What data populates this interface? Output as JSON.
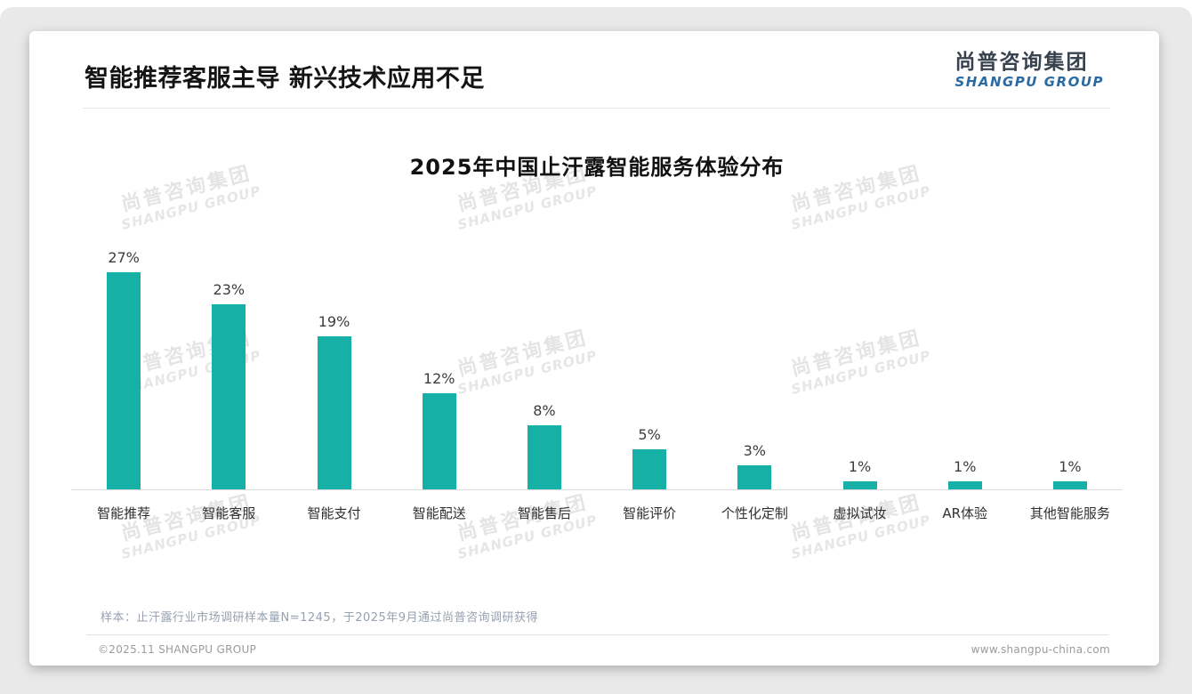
{
  "page": {
    "title": "智能推荐客服主导 新兴技术应用不足",
    "logo": {
      "cn": "尚普咨询集团",
      "en": "SHANGPU GROUP"
    },
    "watermark": {
      "cn": "尚普咨询集团",
      "en": "SHANGPU GROUP"
    },
    "footnote": "样本：止汗露行业市场调研样本量N=1245，于2025年9月通过尚普咨询调研获得",
    "footer_left": "©2025.11 SHANGPU GROUP",
    "footer_right": "www.shangpu-china.com"
  },
  "chart_data": {
    "type": "bar",
    "title": "2025年中国止汗露智能服务体验分布",
    "categories": [
      "智能推荐",
      "智能客服",
      "智能支付",
      "智能配送",
      "智能售后",
      "智能评价",
      "个性化定制",
      "虚拟试妆",
      "AR体验",
      "其他智能服务"
    ],
    "values": [
      27,
      23,
      19,
      12,
      8,
      5,
      3,
      1,
      1,
      1
    ],
    "unit": "%",
    "value_label_format": "{value}%",
    "bar_color": "#17b0a6",
    "ylim": [
      0,
      30
    ],
    "grid": false,
    "legend": false,
    "axis_line_color": "#dcdcdc"
  },
  "colors": {
    "accent_teal": "#17b0a6",
    "logo_blue": "#2a6aa3",
    "stage_background": "#e9e9e9"
  }
}
